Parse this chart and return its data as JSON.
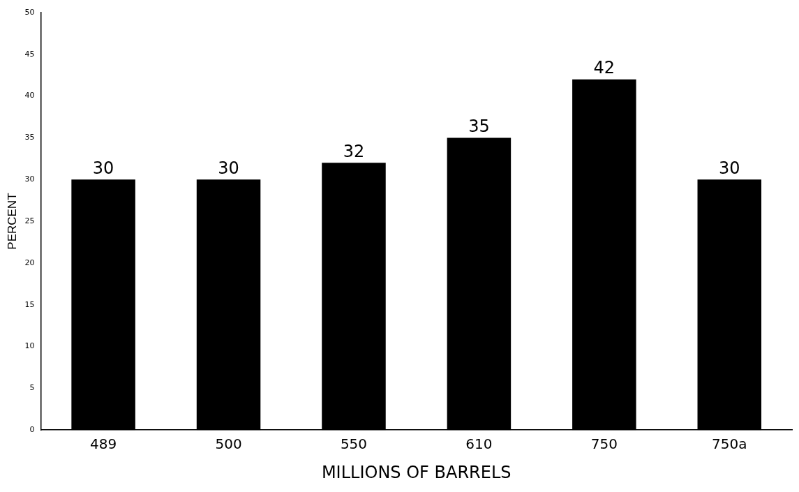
{
  "chart_data": {
    "type": "bar",
    "xlabel": "MILLIONS OF BARRELS",
    "ylabel": "PERCENT",
    "categories": [
      "489",
      "500",
      "550",
      "610",
      "750",
      "750a"
    ],
    "values": [
      30,
      30,
      32,
      35,
      42,
      30
    ],
    "color": "#000000",
    "ylim": [
      0,
      50
    ],
    "yticks": [
      0,
      5,
      10,
      15,
      20,
      25,
      30,
      35,
      40,
      45,
      50
    ],
    "grid": false,
    "data_labels": true
  }
}
